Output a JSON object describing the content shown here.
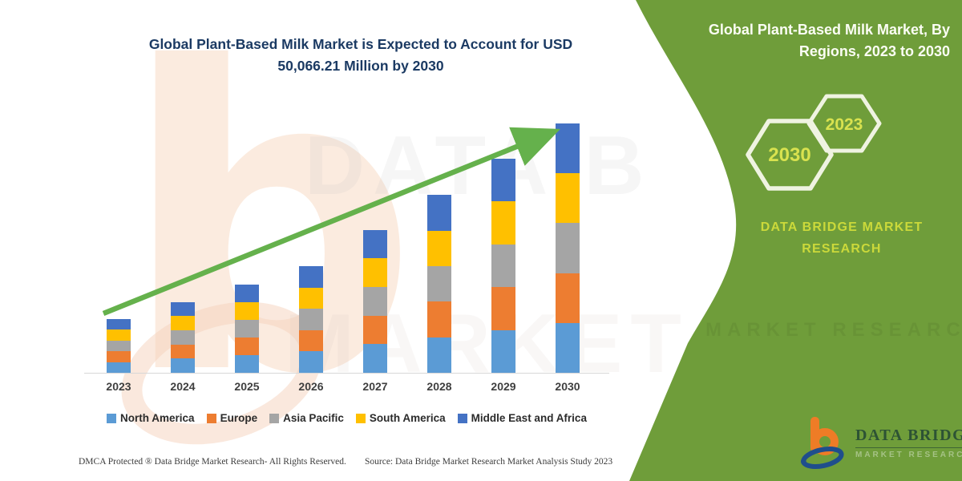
{
  "main": {
    "title_line1": "Global Plant-Based Milk Market is Expected to Account for USD",
    "title_line2": "50,066.21 Million by 2030"
  },
  "side_panel": {
    "title_line1": "Global Plant-Based Milk Market, By",
    "title_line2": "Regions, 2023 to 2030",
    "hexagons": [
      {
        "label": "2030"
      },
      {
        "label": "2023"
      }
    ],
    "brand_line1": "DATA BRIDGE MARKET",
    "brand_line2": "RESEARCH",
    "colors": {
      "background": "#6f9d3a",
      "accent_text": "#cbd93a",
      "hexagon_stroke": "#eff3e1",
      "title_text": "#fbfdf4"
    }
  },
  "logo": {
    "name": "DATA BRIDGE",
    "tagline": "MARKET RESEARCH",
    "mark_orange": "#ee7c26",
    "mark_blue": "#1f4e8c"
  },
  "footer": {
    "left": "DMCA Protected ® Data Bridge Market Research-  All Rights Reserved.",
    "right": "Source: Data Bridge Market Research  Market Analysis Study 2023"
  },
  "watermarks": {
    "big_letter": "b",
    "ghost_top": "DATA B",
    "ghost_bottom": "MARKET RE",
    "panel_ghost": "MARKET RESEARCH"
  },
  "chart_data": {
    "type": "bar",
    "stacked": true,
    "title": "Global Plant-Based Milk Market is Expected to Account for USD 50,066.21 Million by 2030",
    "units": "USD Million",
    "categories": [
      "2023",
      "2024",
      "2025",
      "2026",
      "2027",
      "2028",
      "2029",
      "2030"
    ],
    "series": [
      {
        "name": "North America",
        "color": "#5B9BD5",
        "values": [
          2160,
          2840,
          3540,
          4280,
          5740,
          7140,
          8600,
          10013.24
        ]
      },
      {
        "name": "Europe",
        "color": "#ED7D31",
        "values": [
          2160,
          2840,
          3540,
          4280,
          5740,
          7140,
          8600,
          10013.24
        ]
      },
      {
        "name": "Asia Pacific",
        "color": "#A5A5A5",
        "values": [
          2160,
          2840,
          3540,
          4280,
          5740,
          7140,
          8600,
          10013.24
        ]
      },
      {
        "name": "South America",
        "color": "#FFC000",
        "values": [
          2160,
          2840,
          3540,
          4280,
          5740,
          7140,
          8600,
          10013.24
        ]
      },
      {
        "name": "Middle East and Africa",
        "color": "#4472C4",
        "values": [
          2160,
          2840,
          3540,
          4280,
          5740,
          7140,
          8600,
          10013.24
        ]
      }
    ],
    "totals_estimated": [
      10800,
      14200,
      17700,
      21400,
      28700,
      35700,
      43000,
      50066.21
    ],
    "final_value_label": "USD 50,066.21 Million by 2030",
    "value_axis_visible": false,
    "gridlines": false,
    "trend_arrow": true,
    "trend_arrow_color": "#65b14c",
    "legend_position": "bottom",
    "xlabel": "",
    "ylabel": "",
    "ylim": [
      0,
      52000
    ]
  }
}
